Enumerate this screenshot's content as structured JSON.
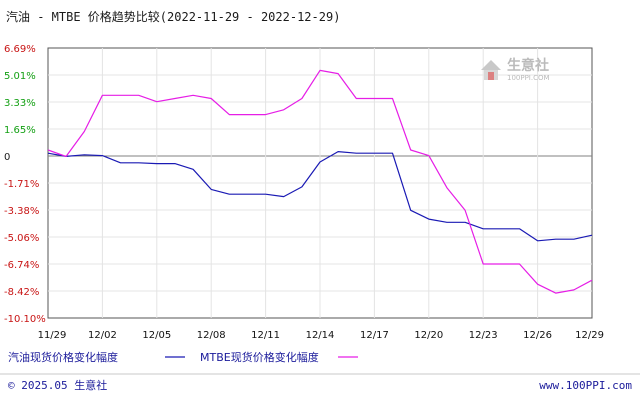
{
  "chart_data": {
    "type": "line",
    "title": "汽油 - MTBE 价格趋势比较(2022-11-29 - 2022-12-29)",
    "x_ticks": [
      "11/29",
      "12/02",
      "12/05",
      "12/08",
      "12/11",
      "12/14",
      "12/17",
      "12/20",
      "12/23",
      "12/26",
      "12/29"
    ],
    "y_ticks": [
      "6.69%",
      "5.01%",
      "3.33%",
      "1.65%",
      "0",
      "-1.71%",
      "-3.38%",
      "-5.06%",
      "-6.74%",
      "-8.42%",
      "-10.10%"
    ],
    "ylim": [
      -10.1,
      6.69
    ],
    "xlim": [
      0,
      30
    ],
    "grid": true,
    "legend_position": "bottom-left",
    "series": [
      {
        "name": "汽油现货价格变化幅度",
        "color": "#1a1ab4",
        "x": [
          0,
          1,
          2,
          3,
          4,
          5,
          6,
          7,
          8,
          9,
          10,
          11,
          12,
          13,
          14,
          15,
          16,
          17,
          18,
          19,
          20,
          21,
          22,
          23,
          24,
          25,
          26,
          27,
          28,
          29,
          30
        ],
        "y": [
          0.15,
          -0.05,
          0.05,
          0.0,
          -0.45,
          -0.45,
          -0.5,
          -0.5,
          -0.85,
          -2.1,
          -2.4,
          -2.4,
          -2.4,
          -2.55,
          -1.95,
          -0.4,
          0.25,
          0.15,
          0.15,
          0.15,
          -3.4,
          -3.95,
          -4.15,
          -4.15,
          -4.55,
          -4.55,
          -4.55,
          -5.3,
          -5.2,
          -5.2,
          -4.95
        ]
      },
      {
        "name": "MTBE现货价格变化幅度",
        "color": "#e61ee6",
        "x": [
          0,
          1,
          2,
          3,
          4,
          5,
          6,
          7,
          8,
          9,
          10,
          11,
          12,
          13,
          14,
          15,
          16,
          17,
          18,
          19,
          20,
          21,
          22,
          23,
          24,
          25,
          26,
          27,
          28,
          29,
          30
        ],
        "y": [
          0.35,
          -0.05,
          1.5,
          3.75,
          3.75,
          3.75,
          3.35,
          3.55,
          3.75,
          3.55,
          2.55,
          2.55,
          2.55,
          2.85,
          3.55,
          5.3,
          5.1,
          3.55,
          3.55,
          3.55,
          0.35,
          0.0,
          -2.0,
          -3.4,
          -6.74,
          -6.74,
          -6.74,
          -8.0,
          -8.55,
          -8.35,
          -7.75
        ]
      }
    ]
  },
  "colors": {
    "negative_tick": "#c81414",
    "positive_tick": "#1a1a1a",
    "accent_tick": "#14a014",
    "grid": "#e4e4e4",
    "zero_line": "#808080"
  },
  "watermark": {
    "text": "生意社",
    "sub": "100PPI.COM"
  },
  "footer": {
    "copyright": "© 2025.05 生意社",
    "site": "www.100PPI.com"
  }
}
